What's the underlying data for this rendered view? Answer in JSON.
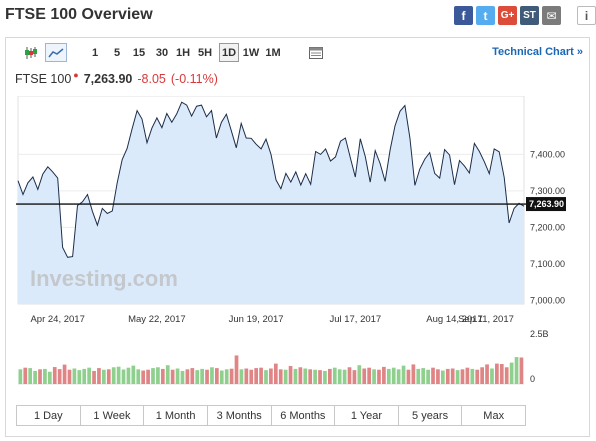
{
  "page": {
    "title": "FTSE 100 Overview"
  },
  "share": {
    "buttons": [
      {
        "name": "facebook",
        "glyph": "f",
        "color": "#3b5998"
      },
      {
        "name": "twitter",
        "glyph": "t",
        "color": "#55acee"
      },
      {
        "name": "google-plus",
        "glyph": "G+",
        "color": "#dd4b39"
      },
      {
        "name": "stocktwits",
        "glyph": "ST",
        "color": "#405a79"
      },
      {
        "name": "email",
        "glyph": "✉",
        "color": "#7b7b7b"
      }
    ],
    "info_glyph": "i"
  },
  "toolbar": {
    "chart_type_icons": [
      "candlestick-icon",
      "area-chart-icon"
    ],
    "active_chart_type": "area-chart-icon",
    "timeframes": [
      "1",
      "5",
      "15",
      "30",
      "1H",
      "5H",
      "1D",
      "1W",
      "1M"
    ],
    "active_timeframe": "1D",
    "extra_icon": "table-icon",
    "technical_link": "Technical Chart »"
  },
  "quote": {
    "name": "FTSE 100",
    "price": "7,263.90",
    "change": "-8.05",
    "change_pct": "(-0.11%)",
    "change_color": "#d9383a"
  },
  "chart_data": {
    "type": "area",
    "title": "",
    "xlabel": "",
    "ylabel": "",
    "x_tick_labels": [
      "Apr 24, 2017",
      "May 22, 2017",
      "Jun 19, 2017",
      "Jul 17, 2017",
      "Aug 14, 2017",
      "Sep 11, 2017"
    ],
    "y_tick_labels": [
      "7,400.00",
      "7,300.00",
      "7,200.00",
      "7,100.00",
      "7,000.00"
    ],
    "ylim": [
      6990,
      7560
    ],
    "last_price_label": "7,263.90",
    "last_price": 7263.9,
    "watermark": "Investing.com",
    "fill_color": "#dbeafa",
    "line_color": "#1c2d4a",
    "values": [
      7328,
      7290,
      7322,
      7338,
      7304,
      7346,
      7366,
      7352,
      7335,
      7145,
      7118,
      7120,
      7260,
      7270,
      7290,
      7244,
      7206,
      7252,
      7238,
      7245,
      7322,
      7386,
      7416,
      7470,
      7520,
      7497,
      7432,
      7472,
      7500,
      7473,
      7512,
      7488,
      7511,
      7543,
      7535,
      7505,
      7532,
      7535,
      7503,
      7520,
      7445,
      7488,
      7510,
      7465,
      7418,
      7485,
      7445,
      7444,
      7428,
      7415,
      7442,
      7400,
      7330,
      7306,
      7348,
      7324,
      7352,
      7316,
      7347,
      7318,
      7408,
      7400,
      7415,
      7382,
      7393,
      7436,
      7445,
      7390,
      7338,
      7443,
      7394,
      7324,
      7410,
      7375,
      7326,
      7412,
      7478,
      7518,
      7534,
      7445,
      7315,
      7360,
      7387,
      7405,
      7348,
      7335,
      7413,
      7398,
      7317,
      7383,
      7368,
      7349,
      7430,
      7408,
      7380,
      7347,
      7415,
      7407,
      7337,
      7212,
      7252,
      7266,
      7258
    ],
    "volume": {
      "axis_labels": [
        "2.5B",
        "0"
      ],
      "max": 2.5,
      "up_color": "#8fd08f",
      "down_color": "#e08585",
      "bars": [
        0.72,
        0.8,
        0.78,
        0.64,
        0.72,
        0.74,
        0.6,
        0.83,
        0.73,
        0.95,
        0.7,
        0.76,
        0.68,
        0.74,
        0.8,
        0.64,
        0.78,
        0.7,
        0.72,
        0.82,
        0.85,
        0.71,
        0.8,
        0.9,
        0.72,
        0.66,
        0.7,
        0.78,
        0.82,
        0.74,
        0.92,
        0.7,
        0.76,
        0.64,
        0.72,
        0.78,
        0.68,
        0.74,
        0.7,
        0.82,
        0.78,
        0.66,
        0.72,
        0.75,
        1.4,
        0.72,
        0.76,
        0.7,
        0.78,
        0.8,
        0.68,
        0.76,
        1.0,
        0.72,
        0.7,
        0.88,
        0.74,
        0.82,
        0.76,
        0.72,
        0.7,
        0.68,
        0.64,
        0.74,
        0.8,
        0.72,
        0.7,
        0.82,
        0.68,
        0.92,
        0.76,
        0.8,
        0.72,
        0.7,
        0.84,
        0.74,
        0.8,
        0.72,
        0.9,
        0.7,
        0.96,
        0.74,
        0.78,
        0.7,
        0.8,
        0.72,
        0.66,
        0.74,
        0.76,
        0.68,
        0.72,
        0.8,
        0.74,
        0.7,
        0.82,
        0.96,
        0.76,
        1.0,
        0.98,
        0.82,
        1.05,
        1.32,
        1.3
      ]
    }
  },
  "ranges": [
    "1 Day",
    "1 Week",
    "1 Month",
    "3 Months",
    "6 Months",
    "1 Year",
    "5 years",
    "Max"
  ]
}
